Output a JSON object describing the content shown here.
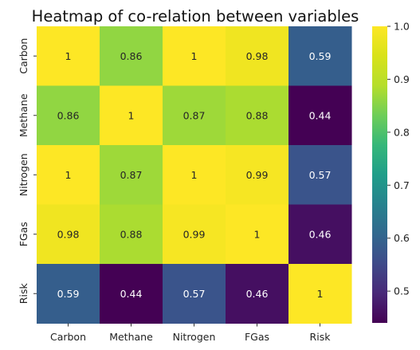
{
  "chart_data": {
    "type": "heatmap",
    "title": "Heatmap of co-relation between variables",
    "x_labels": [
      "Carbon",
      "Methane",
      "Nitrogen",
      "FGas",
      "Risk"
    ],
    "y_labels": [
      "Carbon",
      "Methane",
      "Nitrogen",
      "FGas",
      "Risk"
    ],
    "values": [
      [
        1,
        0.86,
        1,
        0.98,
        0.59
      ],
      [
        0.86,
        1,
        0.87,
        0.88,
        0.44
      ],
      [
        1,
        0.87,
        1,
        0.99,
        0.57
      ],
      [
        0.98,
        0.88,
        0.99,
        1,
        0.46
      ],
      [
        0.59,
        0.44,
        0.57,
        0.46,
        1
      ]
    ],
    "cell_labels": [
      [
        "1",
        "0.86",
        "1",
        "0.98",
        "0.59"
      ],
      [
        "0.86",
        "1",
        "0.87",
        "0.88",
        "0.44"
      ],
      [
        "1",
        "0.87",
        "1",
        "0.99",
        "0.57"
      ],
      [
        "0.98",
        "0.88",
        "0.99",
        "1",
        "0.46"
      ],
      [
        "0.59",
        "0.44",
        "0.57",
        "0.46",
        "1"
      ]
    ],
    "colormap": "viridis",
    "color_range": [
      0.44,
      1.0
    ],
    "colorbar_ticks": [
      0.5,
      0.6,
      0.7,
      0.8,
      0.9,
      1.0
    ],
    "colorbar_tick_labels": [
      "0.5",
      "0.6",
      "0.7",
      "0.8",
      "0.9",
      "1.0"
    ]
  }
}
